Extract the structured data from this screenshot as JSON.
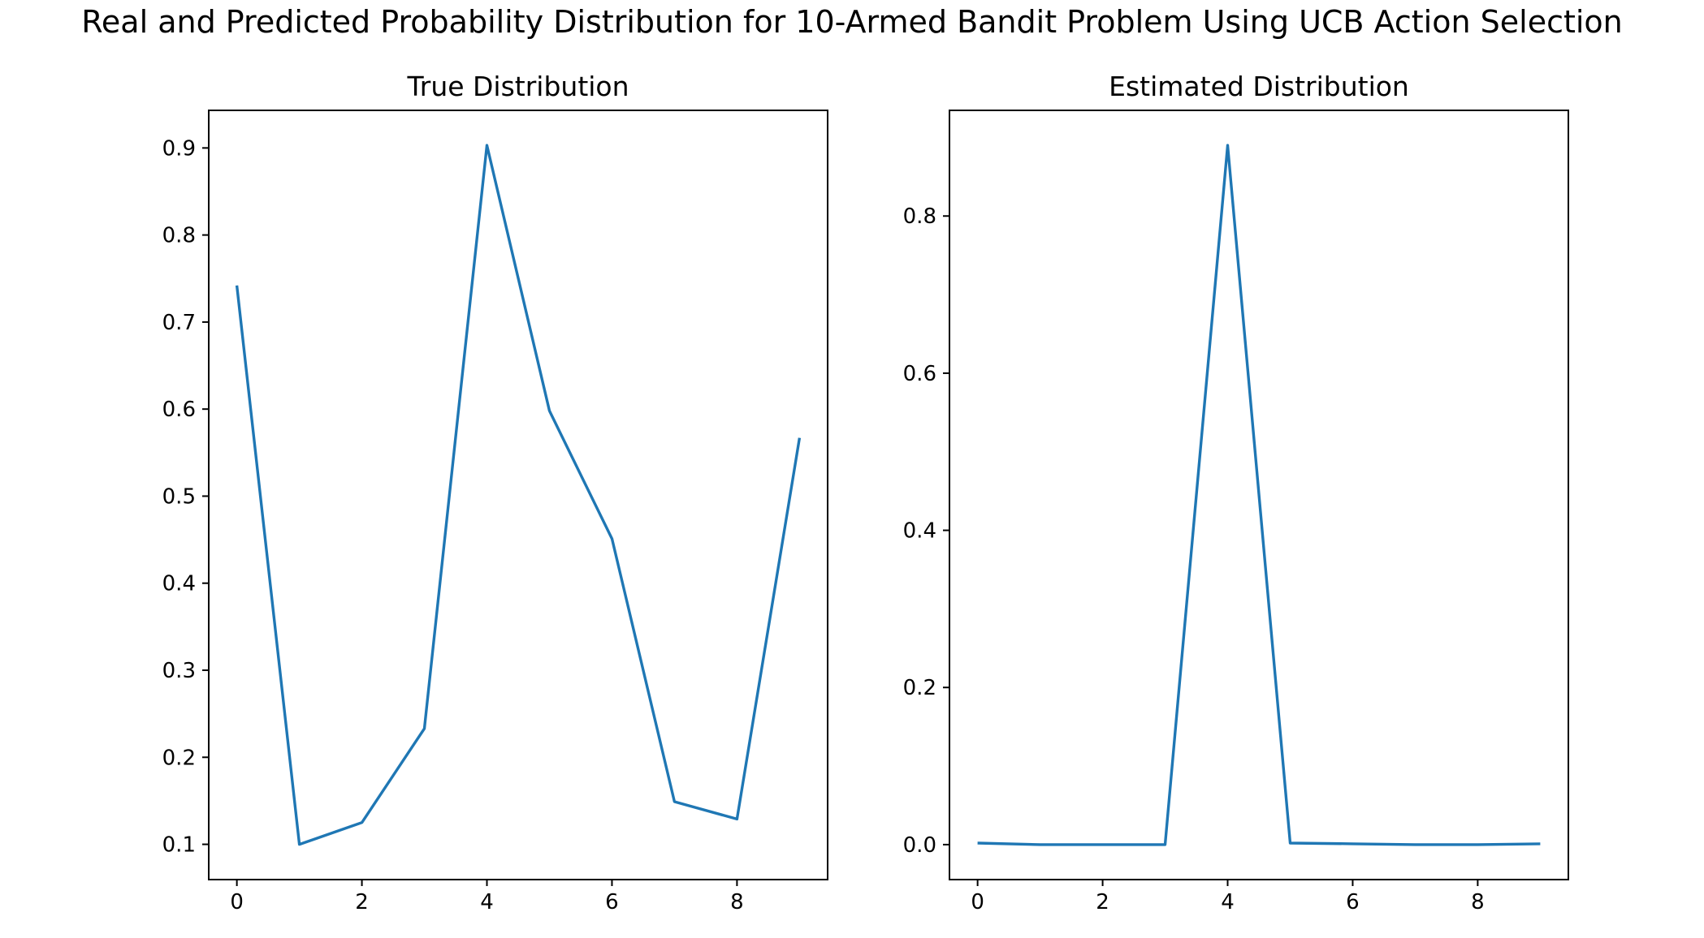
{
  "title": "Real and Predicted Probability Distribution for 10-Armed Bandit Problem Using UCB Action Selection",
  "line_color": "#1f77b4",
  "chart_data": [
    {
      "type": "line",
      "title": "True Distribution",
      "xlabel": "",
      "ylabel": "",
      "x": [
        0,
        1,
        2,
        3,
        4,
        5,
        6,
        7,
        8,
        9
      ],
      "values": [
        0.742,
        0.1,
        0.125,
        0.233,
        0.903,
        0.598,
        0.451,
        0.149,
        0.129,
        0.567
      ],
      "xlim": [
        -0.45,
        9.45
      ],
      "ylim": [
        0.0595,
        0.9432
      ],
      "xticks": [
        0,
        2,
        4,
        6,
        8
      ],
      "xtick_labels": [
        "0",
        "2",
        "4",
        "6",
        "8"
      ],
      "yticks": [
        0.1,
        0.2,
        0.3,
        0.4,
        0.5,
        0.6,
        0.7,
        0.8,
        0.9
      ],
      "ytick_labels": [
        "0.1",
        "0.2",
        "0.3",
        "0.4",
        "0.5",
        "0.6",
        "0.7",
        "0.8",
        "0.9"
      ],
      "grid": false,
      "legend": "none"
    },
    {
      "type": "line",
      "title": "Estimated Distribution",
      "xlabel": "",
      "ylabel": "",
      "x": [
        0,
        1,
        2,
        3,
        4,
        5,
        6,
        7,
        8,
        9
      ],
      "values": [
        0.002,
        0.0,
        0.0,
        0.0,
        0.89,
        0.002,
        0.001,
        0.0,
        0.0,
        0.001
      ],
      "xlim": [
        -0.45,
        9.45
      ],
      "ylim": [
        -0.0445,
        0.9345
      ],
      "xticks": [
        0,
        2,
        4,
        6,
        8
      ],
      "xtick_labels": [
        "0",
        "2",
        "4",
        "6",
        "8"
      ],
      "yticks": [
        0.0,
        0.2,
        0.4,
        0.6,
        0.8
      ],
      "ytick_labels": [
        "0.0",
        "0.2",
        "0.4",
        "0.6",
        "0.8"
      ],
      "grid": false,
      "legend": "none"
    }
  ]
}
